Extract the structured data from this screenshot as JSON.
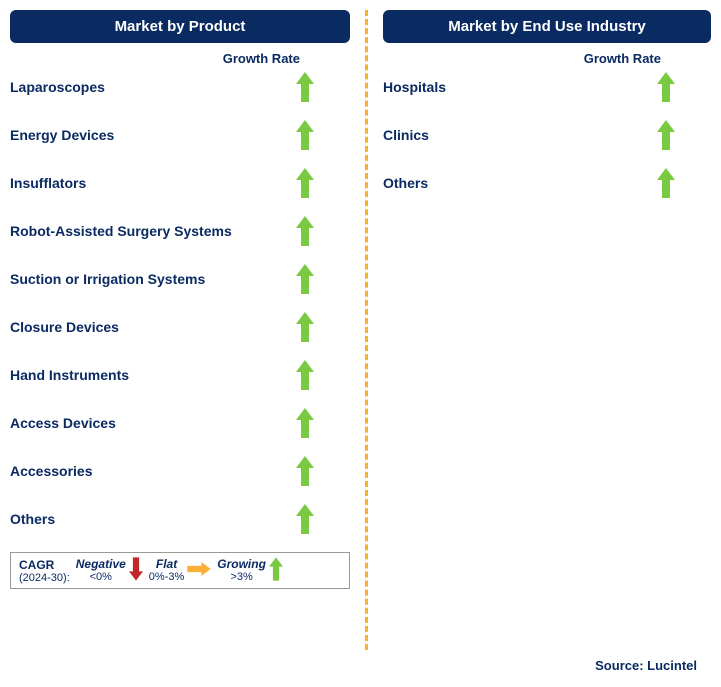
{
  "colors": {
    "navy": "#0a2a62",
    "green": "#7ac943",
    "red": "#c1272d",
    "orange": "#fbb034",
    "divider": "#fbb034",
    "bg": "#ffffff"
  },
  "left": {
    "title": "Market by Product",
    "growth_header": "Growth Rate",
    "items": [
      {
        "label": "Laparoscopes",
        "dir": "up"
      },
      {
        "label": "Energy Devices",
        "dir": "up"
      },
      {
        "label": "Insufflators",
        "dir": "up"
      },
      {
        "label": "Robot-Assisted Surgery Systems",
        "dir": "up"
      },
      {
        "label": "Suction or Irrigation Systems",
        "dir": "up"
      },
      {
        "label": "Closure Devices",
        "dir": "up"
      },
      {
        "label": "Hand Instruments",
        "dir": "up"
      },
      {
        "label": "Access Devices",
        "dir": "up"
      },
      {
        "label": "Accessories",
        "dir": "up"
      },
      {
        "label": "Others",
        "dir": "up"
      }
    ]
  },
  "right": {
    "title": "Market by End Use Industry",
    "growth_header": "Growth Rate",
    "items": [
      {
        "label": "Hospitals",
        "dir": "up"
      },
      {
        "label": "Clinics",
        "dir": "up"
      },
      {
        "label": "Others",
        "dir": "up"
      }
    ]
  },
  "legend": {
    "title": "CAGR",
    "subtitle": "(2024-30):",
    "entries": [
      {
        "name": "Negative",
        "range": "<0%",
        "dir": "down",
        "color": "#c1272d"
      },
      {
        "name": "Flat",
        "range": "0%-3%",
        "dir": "right",
        "color": "#fbb034"
      },
      {
        "name": "Growing",
        "range": ">3%",
        "dir": "up",
        "color": "#7ac943"
      }
    ]
  },
  "source": "Source: Lucintel",
  "arrows": {
    "up_color": "#7ac943",
    "down_color": "#c1272d",
    "right_color": "#fbb034",
    "size": {
      "w": 18,
      "h": 30
    }
  }
}
